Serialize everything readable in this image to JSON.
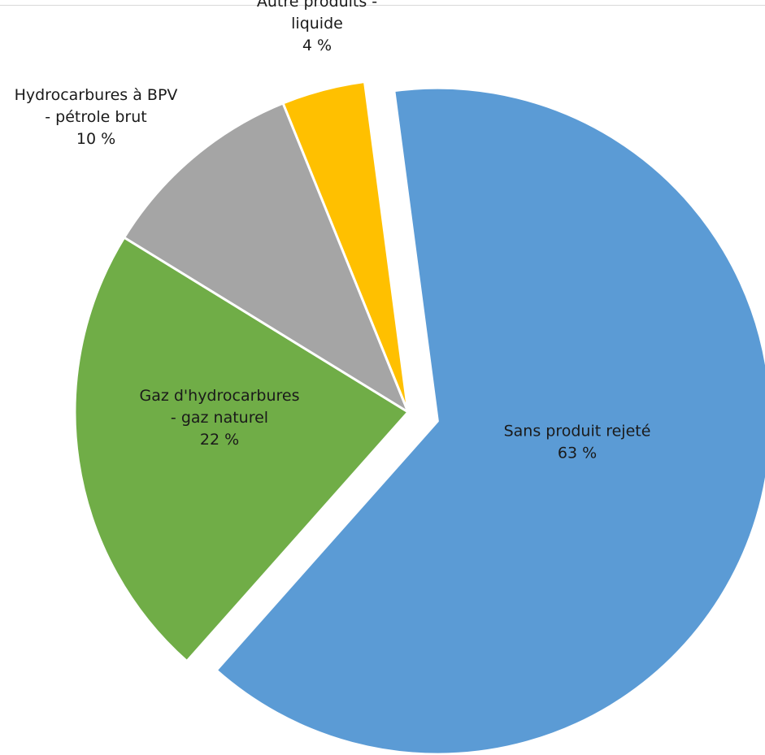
{
  "chart_data": {
    "type": "pie",
    "title": "",
    "legend": "none",
    "slices": [
      {
        "name": "Sans produit rejeté",
        "label_lines": [
          "Sans produit rejeté"
        ],
        "percent_text": "63 %",
        "value": 63,
        "color": "#5b9bd5",
        "exploded": true
      },
      {
        "name": "Gaz d'hydrocarbures - gaz naturel",
        "label_lines": [
          "Gaz d'hydrocarbures",
          "- gaz naturel"
        ],
        "percent_text": "22 %",
        "value": 22,
        "color": "#70ad47",
        "exploded": false
      },
      {
        "name": "Hydrocarbures à BPV - pétrole brut",
        "label_lines": [
          "Hydrocarbures à BPV",
          "- pétrole brut"
        ],
        "percent_text": "10 %",
        "value": 10,
        "color": "#a5a5a5",
        "exploded": false
      },
      {
        "name": "Autre produits - liquide",
        "label_lines": [
          "Autre produits -",
          "liquide"
        ],
        "percent_text": "4 %",
        "value": 4,
        "color": "#ffc000",
        "exploded": false
      }
    ]
  }
}
